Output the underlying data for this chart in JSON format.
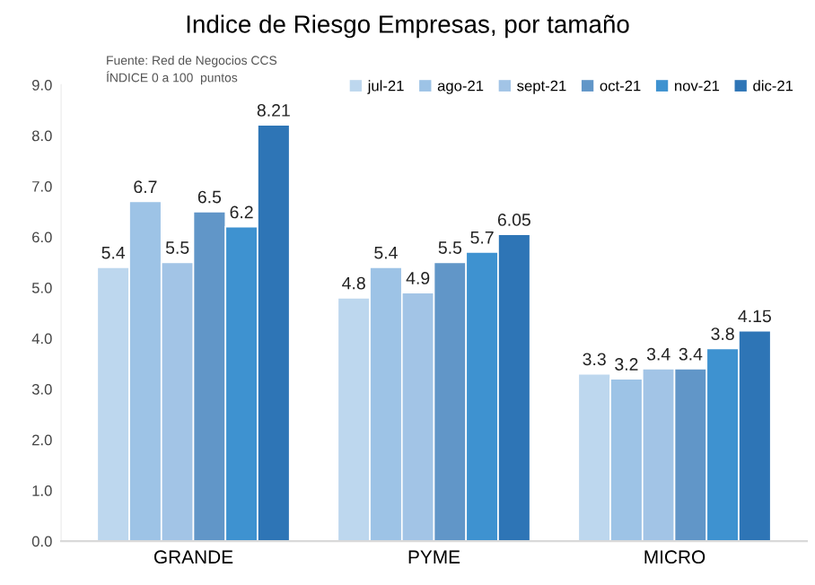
{
  "chart_data": {
    "type": "bar",
    "title": "Indice de Riesgo Empresas, por tamaño",
    "annotations": [
      "Fuente: Red de Negocios CCS",
      "ÍNDICE 0 a 100  puntos"
    ],
    "categories": [
      "GRANDE",
      "PYME",
      "MICRO"
    ],
    "series": [
      {
        "name": "jul-21",
        "color": "#bdd7ee",
        "values": [
          5.4,
          4.8,
          3.3
        ]
      },
      {
        "name": "ago-21",
        "color": "#9dc3e6",
        "values": [
          6.7,
          5.4,
          3.2
        ]
      },
      {
        "name": "sept-21",
        "color": "#a2c4e6",
        "values": [
          5.5,
          4.9,
          3.4
        ]
      },
      {
        "name": "oct-21",
        "color": "#6196c8",
        "values": [
          6.5,
          5.5,
          3.4
        ]
      },
      {
        "name": "nov-21",
        "color": "#3e92d0",
        "values": [
          6.2,
          5.7,
          3.8
        ]
      },
      {
        "name": "dic-21",
        "color": "#2e75b6",
        "values": [
          8.21,
          6.05,
          4.15
        ]
      }
    ],
    "ylim": [
      0,
      9
    ],
    "yticks": [
      {
        "value": 0,
        "label": "0.0"
      },
      {
        "value": 1,
        "label": "1.0"
      },
      {
        "value": 2,
        "label": "2.0"
      },
      {
        "value": 3,
        "label": "3.0"
      },
      {
        "value": 4,
        "label": "4.0"
      },
      {
        "value": 5,
        "label": "5.0"
      },
      {
        "value": 6,
        "label": "6.0"
      },
      {
        "value": 7,
        "label": "7.0"
      },
      {
        "value": 8,
        "label": "8.0"
      },
      {
        "value": 9,
        "label": "9.0"
      }
    ],
    "data_labels": true,
    "grid": false,
    "legend": "top right"
  }
}
